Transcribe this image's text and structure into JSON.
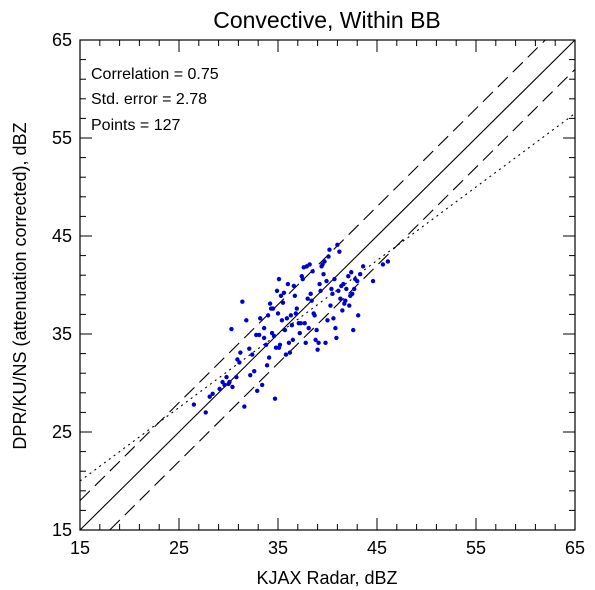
{
  "chart_data": {
    "type": "scatter",
    "title": "Convective, Within BB",
    "xlabel": "KJAX Radar, dBZ",
    "ylabel": "DPR/KU/NS (attenuation corrected), dBZ",
    "xlim": [
      15,
      65
    ],
    "ylim": [
      15,
      65
    ],
    "x_ticks": [
      "15",
      "25",
      "35",
      "45",
      "55",
      "65"
    ],
    "y_ticks": [
      "15",
      "25",
      "35",
      "45",
      "55",
      "65"
    ],
    "minor_tick_step": 2,
    "grid": false,
    "stats": {
      "correlation": "Correlation = 0.75",
      "std_error": "Std. error = 2.78",
      "points": "Points = 127"
    },
    "reference_lines": [
      {
        "name": "1:1",
        "style": "solid",
        "x": [
          15,
          65
        ],
        "y": [
          15,
          65
        ]
      },
      {
        "name": "+3 dBZ",
        "style": "dashed",
        "x": [
          15,
          65
        ],
        "y": [
          18,
          68
        ]
      },
      {
        "name": "-3 dBZ",
        "style": "dashed",
        "x": [
          15,
          65
        ],
        "y": [
          12,
          62
        ]
      },
      {
        "name": "fit",
        "style": "dotted",
        "x": [
          15,
          65
        ],
        "y": [
          20,
          57.5
        ]
      }
    ],
    "marker_color": "#0000cc",
    "series": [
      {
        "x": [
          26.5,
          27.7,
          28.1,
          29.1,
          29.6,
          30.1,
          30.3,
          30.9,
          31.2,
          31.6,
          31.4,
          32.1,
          32.6,
          33.1,
          33.4,
          33.8,
          34.1,
          34.4,
          34.7,
          35.1,
          35.4,
          35.8,
          36.1,
          36.3,
          35.6,
          34.9,
          34.3,
          33.6,
          32.9,
          30.8,
          31.1,
          32.2,
          33.9,
          34.6,
          35.3,
          36.6,
          37.1,
          37.6,
          38.1,
          38.6,
          39.1,
          39.4,
          39.9,
          40.3,
          40.8,
          41.1,
          41.6,
          42.1,
          42.4,
          42.8,
          43.3,
          44.6,
          45.6,
          46.1,
          43.1,
          42.6,
          41.9,
          41.3,
          40.9,
          40.6,
          40.1,
          39.6,
          38.9,
          38.4,
          37.9,
          37.4,
          36.9,
          36.4,
          35.9,
          35.5,
          35.1,
          34.8,
          34.2,
          37.2,
          37.8,
          38.3,
          38.8,
          39.2,
          39.7,
          40.2,
          40.7,
          41.2,
          41.7,
          42.2,
          42.7,
          36.7,
          36.2,
          35.7,
          34.5,
          33.2,
          32.8,
          33.6,
          37.3,
          38.0,
          38.7,
          39.5,
          40.4,
          41.4,
          41.8,
          42.3,
          43.6,
          41.0,
          40.5,
          39.3,
          38.2,
          37.5,
          36.8,
          36.0,
          35.2,
          34.0,
          32.4,
          31.8,
          30.4,
          30.0,
          29.4,
          29.8,
          28.4,
          37.7,
          38.5,
          39.0,
          39.8,
          40.0,
          41.5,
          42.5,
          43.0,
          36.5,
          35.0
        ],
        "y": [
          27.8,
          27.0,
          28.6,
          29.4,
          29.8,
          30.1,
          35.5,
          32.4,
          33.1,
          27.6,
          38.3,
          33.5,
          31.2,
          34.9,
          29.8,
          33.9,
          32.6,
          35.1,
          28.4,
          33.6,
          36.4,
          32.9,
          34.1,
          36.9,
          39.2,
          39.4,
          37.6,
          34.6,
          29.2,
          30.6,
          32.1,
          30.8,
          31.8,
          34.8,
          38.9,
          39.9,
          36.1,
          41.8,
          35.6,
          37.1,
          34.1,
          41.9,
          40.4,
          37.9,
          35.6,
          39.4,
          40.1,
          40.9,
          41.3,
          40.6,
          41.1,
          40.4,
          42.1,
          42.4,
          36.9,
          35.4,
          39.6,
          38.6,
          34.6,
          36.6,
          42.9,
          41.1,
          35.4,
          38.4,
          41.9,
          40.9,
          37.6,
          35.9,
          36.6,
          38.2,
          40.6,
          33.6,
          38.1,
          35.1,
          34.1,
          39.1,
          34.4,
          40.1,
          42.4,
          43.6,
          40.6,
          43.4,
          38.1,
          37.9,
          39.6,
          38.9,
          33.1,
          35.4,
          37.6,
          36.6,
          34.9,
          35.6,
          36.1,
          38.6,
          36.9,
          42.1,
          39.6,
          39.9,
          38.4,
          38.9,
          41.9,
          44.1,
          39.1,
          39.4,
          42.1,
          40.6,
          37.1,
          40.1,
          33.9,
          36.9,
          32.9,
          36.4,
          29.6,
          29.9,
          30.1,
          30.6,
          28.9,
          36.1,
          41.4,
          33.4,
          34.1,
          36.4,
          37.4,
          39.1,
          40.4,
          34.4,
          37.1
        ]
      }
    ]
  }
}
